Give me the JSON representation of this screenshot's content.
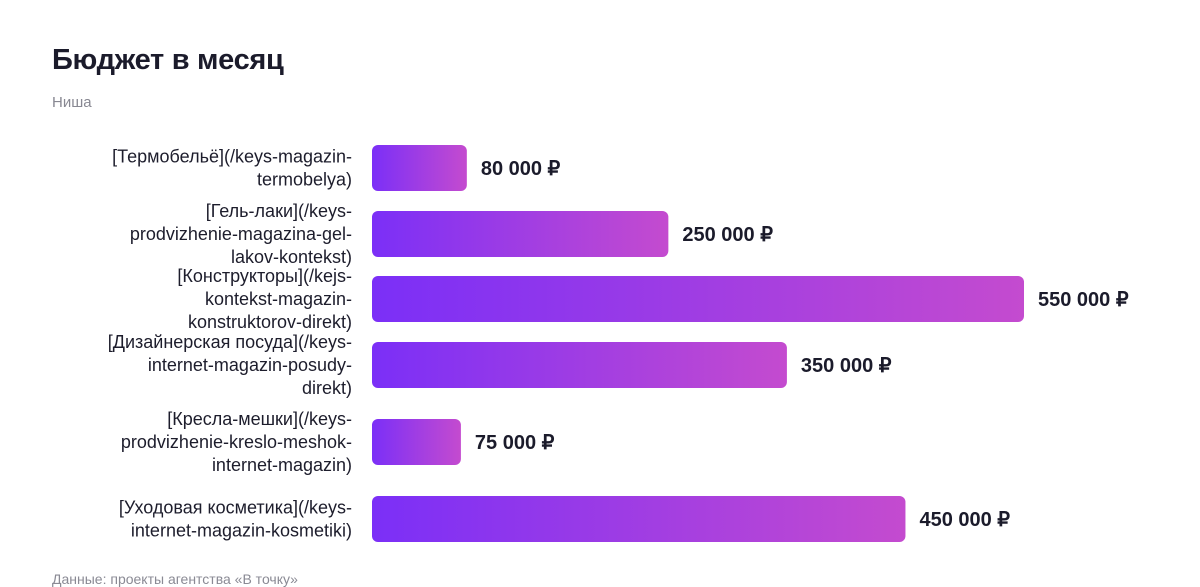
{
  "chart_data": {
    "type": "bar",
    "orientation": "horizontal",
    "title": "Бюджет в месяц",
    "subtitle": "Ниша",
    "source": "Данные: проекты агентства «В точку»",
    "categories": [
      "[Термобельё](/keys-magazin-termobelya)",
      "[Гель-лаки](/keys-prodvizhenie-magazina-gel-lakov-kontekst)",
      "[Конструкторы](/kejs-kontekst-magazin-konstruktorov-direkt)",
      "[Дизайнерская посуда](/keys-internet-magazin-posudy-direkt)",
      "[Кресла-мешки](/keys-prodvizhenie-kreslo-meshok-internet-magazin)",
      "[Уходовая косметика](/keys-internet-magazin-kosmetiki)"
    ],
    "values": [
      80000,
      250000,
      550000,
      350000,
      75000,
      450000
    ],
    "value_labels": [
      "80 000 ₽",
      "250 000 ₽",
      "550 000 ₽",
      "350 000 ₽",
      "75 000 ₽",
      "450 000 ₽"
    ],
    "xlim": [
      0,
      550000
    ],
    "grid": false,
    "legend": "none",
    "colors": {
      "bar_gradient_start": "#7b2ff7",
      "bar_gradient_end": "#c44bcf"
    }
  }
}
